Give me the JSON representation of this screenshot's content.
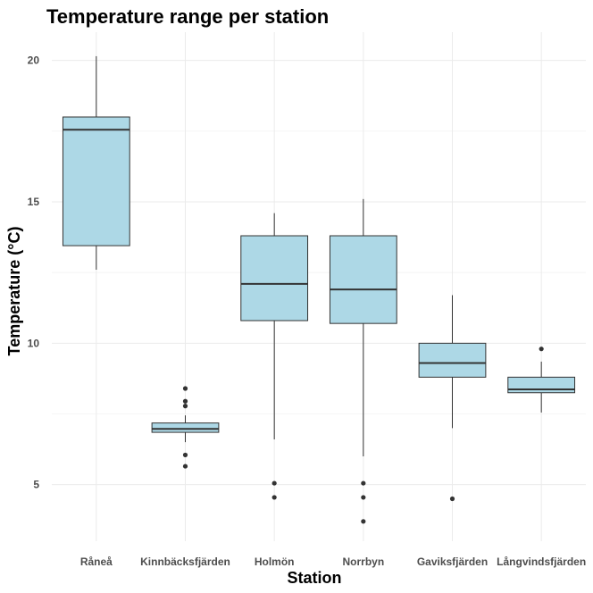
{
  "chart_data": {
    "type": "boxplot",
    "title": "Temperature range per station",
    "xlabel": "Station",
    "ylabel": "Temperature (°C)",
    "ylim": [
      3.0,
      21.0
    ],
    "yticks": [
      5,
      10,
      15,
      20
    ],
    "grid": true,
    "fill_color": "#add8e6",
    "line_color": "#333333",
    "categories": [
      "Råneå",
      "Kinnbäcksfjärden",
      "Holmön",
      "Norrbyn",
      "Gaviksfjärden",
      "Långvindsfjärden"
    ],
    "boxes": [
      {
        "category": "Råneå",
        "whisker_low": 12.6,
        "q1": 13.45,
        "median": 17.55,
        "q3": 18.0,
        "whisker_high": 20.15,
        "outliers": []
      },
      {
        "category": "Kinnbäcksfjärden",
        "whisker_low": 6.5,
        "q1": 6.85,
        "median": 6.97,
        "q3": 7.18,
        "whisker_high": 7.45,
        "outliers": [
          8.4,
          7.95,
          7.78,
          6.05,
          5.65
        ]
      },
      {
        "category": "Holmön",
        "whisker_low": 6.6,
        "q1": 10.8,
        "median": 12.1,
        "q3": 13.8,
        "whisker_high": 14.6,
        "outliers": [
          5.05,
          4.55
        ]
      },
      {
        "category": "Norrbyn",
        "whisker_low": 6.0,
        "q1": 10.7,
        "median": 11.9,
        "q3": 13.8,
        "whisker_high": 15.1,
        "outliers": [
          5.05,
          4.55,
          3.7
        ]
      },
      {
        "category": "Gaviksfjärden",
        "whisker_low": 7.0,
        "q1": 8.8,
        "median": 9.3,
        "q3": 10.0,
        "whisker_high": 11.7,
        "outliers": [
          4.5
        ]
      },
      {
        "category": "Långvindsfjärden",
        "whisker_low": 7.55,
        "q1": 8.25,
        "median": 8.37,
        "q3": 8.8,
        "whisker_high": 9.35,
        "outliers": [
          9.8
        ]
      }
    ]
  }
}
